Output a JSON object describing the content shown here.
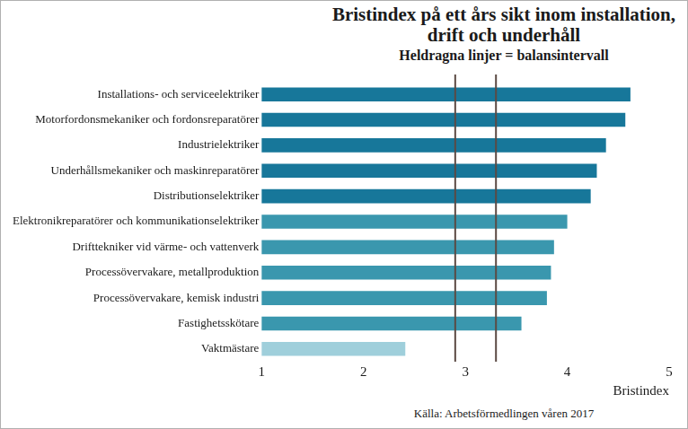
{
  "chart_data": {
    "type": "bar",
    "orientation": "horizontal",
    "title": "Bristindex på ett års sikt inom installation, drift och underhåll",
    "subtitle": "Heldragna linjer = balansintervall",
    "source": "Källa: Arbetsförmedlingen våren 2017",
    "x_label": "Bristindex",
    "categories": [
      "Installations- och serviceelektriker",
      "Motorfordonsmekaniker och fordonsreparatörer",
      "Industrielektriker",
      "Underhållsmekaniker och maskinreparatörer",
      "Distributionselektriker",
      "Elektronikreparatörer och kommunikationselektriker",
      "Drifttekniker vid värme- och vattenverk",
      "Processövervakare, metallproduktion",
      "Processövervakare, kemisk industri",
      "Fastighetsskötare",
      "Vaktmästare"
    ],
    "values": [
      4.62,
      4.57,
      4.38,
      4.29,
      4.23,
      4.0,
      3.87,
      3.84,
      3.8,
      3.55,
      2.41
    ],
    "colors": [
      "#17779a",
      "#17779a",
      "#17779a",
      "#17779a",
      "#17779a",
      "#3a97ae",
      "#3a97ae",
      "#3a97ae",
      "#3a97ae",
      "#3a97ae",
      "#9fcfdb"
    ],
    "reference_lines": [
      2.9,
      3.3
    ],
    "xlim": [
      1,
      5
    ],
    "xticks": [
      1,
      2,
      3,
      4,
      5
    ],
    "grid": false
  }
}
